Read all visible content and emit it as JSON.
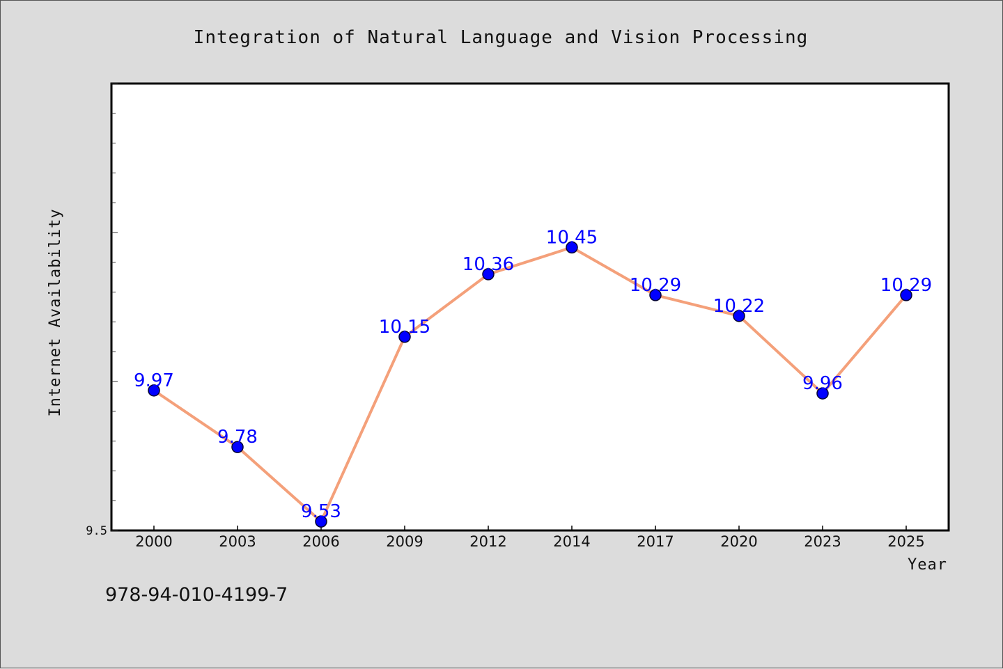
{
  "chart_data": {
    "type": "line",
    "title": "Integration of Natural Language and Vision Processing",
    "xlabel": "Year",
    "ylabel": "Internet Availability",
    "categories": [
      "2000",
      "2003",
      "2006",
      "2009",
      "2012",
      "2014",
      "2017",
      "2020",
      "2023",
      "2025"
    ],
    "series": [
      {
        "values": [
          9.97,
          9.78,
          9.53,
          10.15,
          10.36,
          10.45,
          10.29,
          10.22,
          9.96,
          10.29
        ],
        "labels": [
          "9.97",
          "9.78",
          "9.53",
          "10.15",
          "10.36",
          "10.45",
          "10.29",
          "10.22",
          "9.96",
          "10.29"
        ]
      }
    ],
    "ylim": [
      9.5,
      11.0
    ],
    "yticks_labeled": [
      "9.5"
    ],
    "y_minor_tick_step": 0.1,
    "y_major_tick_step": 0.5,
    "grid": false,
    "legend": false,
    "colors": {
      "line": "#f4a07a",
      "marker": "#0000ff",
      "marker_edge": "#000033",
      "data_label": "#0000ff",
      "background": "#dcdcdc",
      "plot_bg": "#ffffff"
    }
  },
  "footer_text": "978-94-010-4199-7"
}
